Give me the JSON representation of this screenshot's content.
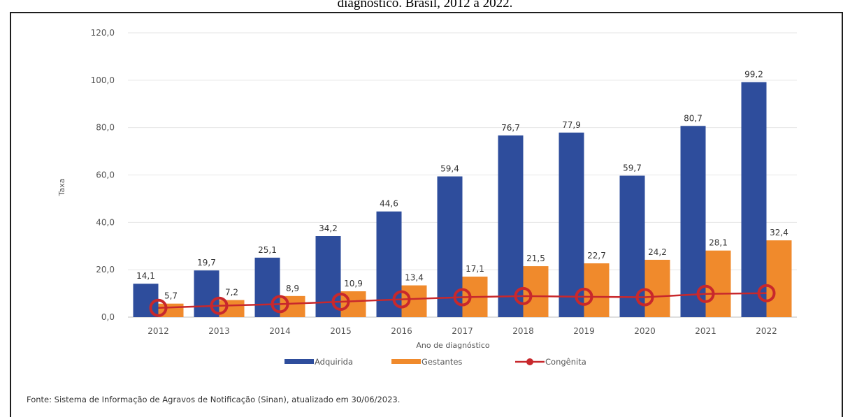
{
  "page": {
    "title": "diagnóstico. Brasil, 2012 a 2022.",
    "source": "Fonte: Sistema de Informação de Agravos de Notificação (Sinan), atualizado em 30/06/2023."
  },
  "colors": {
    "adquirida": "#2e4d9c",
    "gestantes": "#f08a2c",
    "congenita": "#c8282c",
    "grid": "#e6e6e6"
  },
  "chart_data": {
    "type": "bar",
    "title": "",
    "xlabel": "Ano de diagnóstico",
    "ylabel": "Taxa",
    "ylim": [
      0,
      120
    ],
    "yticks": [
      "0,0",
      "20,0",
      "40,0",
      "60,0",
      "80,0",
      "100,0",
      "120,0"
    ],
    "categories": [
      "2012",
      "2013",
      "2014",
      "2015",
      "2016",
      "2017",
      "2018",
      "2019",
      "2020",
      "2021",
      "2022"
    ],
    "grid": true,
    "legend_position": "bottom",
    "series": [
      {
        "name": "Adquirida",
        "kind": "bar",
        "values": [
          14.1,
          19.7,
          25.1,
          34.2,
          44.6,
          59.4,
          76.7,
          77.9,
          59.7,
          80.7,
          99.2
        ],
        "labels": [
          "14,1",
          "19,7",
          "25,1",
          "34,2",
          "44,6",
          "59,4",
          "76,7",
          "77,9",
          "59,7",
          "80,7",
          "99,2"
        ]
      },
      {
        "name": "Gestantes",
        "kind": "bar",
        "values": [
          5.7,
          7.2,
          8.9,
          10.9,
          13.4,
          17.1,
          21.5,
          22.7,
          24.2,
          28.1,
          32.4
        ],
        "labels": [
          "5,7",
          "7,2",
          "8,9",
          "10,9",
          "13,4",
          "17,1",
          "21,5",
          "22,7",
          "24,2",
          "28,1",
          "32,4"
        ]
      },
      {
        "name": "Congênita",
        "kind": "line",
        "values": [
          3.9,
          4.8,
          5.5,
          6.5,
          7.5,
          8.4,
          8.9,
          8.6,
          8.4,
          9.8,
          10.1
        ]
      }
    ]
  }
}
